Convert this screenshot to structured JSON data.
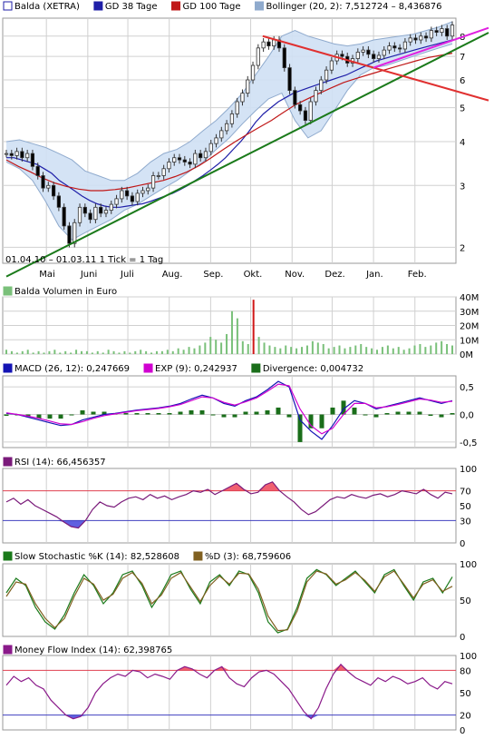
{
  "colors": {
    "frame": "#9a9a9a",
    "grid": "#d0d0d0",
    "candle_up": "#ffffff",
    "candle_down": "#000000",
    "price_line": "#333333",
    "gd38": "#1f1fa8",
    "gd100": "#c01818",
    "boll_fill": "#cfe0f4",
    "boll_line": "#8faacd",
    "trend_up": "#1a7a1a",
    "trend_down": "#e03030",
    "trend_pink": "#e020e0",
    "volume": "#7ac07a",
    "volume_spike": "#d01818",
    "macd": "#1414b4",
    "exp": "#d000d0",
    "divergence": "#1a6e1a",
    "rsi": "#7a1a7a",
    "osc_fill_high": "#f06070",
    "osc_fill_low": "#6060e0",
    "osc_line_high": "#e04050",
    "osc_line_low": "#4040c0",
    "stoch_k": "#1a7a1a",
    "stoch_d": "#806020",
    "mfi": "#8a1a8a"
  },
  "panels": {
    "price": {
      "legend": [
        {
          "label": "Balda (XETRA)",
          "color": "#1f1fa8",
          "swatch": "outline"
        },
        {
          "label": "GD 38 Tage",
          "color": "#1f1fa8",
          "swatch": "fill"
        },
        {
          "label": "GD 100 Tage",
          "color": "#c01818",
          "swatch": "fill"
        },
        {
          "label": "Bollinger (20, 2): 7,512724 – 8,436876",
          "color": "#8faacd",
          "swatch": "fill"
        }
      ],
      "info": "01.04.10 – 01.03.11   1 Tick = 1 Tag"
    },
    "volume": {
      "legend": [
        {
          "label": "Balda Volumen in Euro",
          "color": "#7ac07a",
          "swatch": "fill"
        }
      ]
    },
    "macd": {
      "legend": [
        {
          "label": "MACD (26, 12): 0,247669",
          "color": "#1414b4",
          "swatch": "fill"
        },
        {
          "label": "EXP (9): 0,242937",
          "color": "#d000d0",
          "swatch": "fill"
        },
        {
          "label": "Divergence: 0,004732",
          "color": "#1a6e1a",
          "swatch": "fill"
        }
      ]
    },
    "rsi": {
      "legend": [
        {
          "label": "RSI (14): 66,456357",
          "color": "#7a1a7a",
          "swatch": "fill"
        }
      ]
    },
    "stoch": {
      "legend": [
        {
          "label": "Slow Stochastic %K (14): 82,528608",
          "color": "#1a7a1a",
          "swatch": "fill"
        },
        {
          "label": "%D (3): 68,759606",
          "color": "#806020",
          "swatch": "fill"
        }
      ]
    },
    "mfi": {
      "legend": [
        {
          "label": "Money Flow Index (14): 62,398765",
          "color": "#8a1a8a",
          "swatch": "fill"
        }
      ]
    }
  },
  "chart_data": [
    {
      "type": "line",
      "title": "Balda (XETRA)",
      "subtitle": "01.04.10 – 01.03.11   1 Tick = 1 Tag",
      "x_start": "2010-04-01",
      "x_end": "2011-03-01",
      "x_tick_labels": [
        "Mai",
        "Juni",
        "Juli",
        "Aug.",
        "Sep.",
        "Okt.",
        "Nov.",
        "Dez.",
        "Jan.",
        "Feb."
      ],
      "y_scale": "log",
      "ylim": [
        1.8,
        9
      ],
      "y_ticks": [
        2,
        3,
        4,
        5,
        6,
        7,
        8
      ],
      "y_tick_labels": [
        "2",
        "3",
        "4",
        "5",
        "6",
        "7",
        "8"
      ],
      "grid": true,
      "legend_position": "top",
      "close_prices": [
        3.7,
        3.65,
        3.75,
        3.6,
        3.7,
        3.4,
        3.2,
        2.95,
        3.0,
        2.8,
        2.6,
        2.3,
        2.05,
        2.35,
        2.6,
        2.5,
        2.4,
        2.6,
        2.5,
        2.55,
        2.65,
        2.75,
        2.9,
        2.8,
        2.7,
        2.85,
        2.9,
        2.95,
        3.2,
        3.2,
        3.35,
        3.5,
        3.6,
        3.55,
        3.5,
        3.45,
        3.7,
        3.6,
        3.75,
        3.95,
        4.1,
        4.3,
        4.5,
        4.8,
        5.2,
        5.5,
        6.0,
        6.6,
        7.4,
        7.7,
        7.5,
        7.8,
        7.4,
        6.5,
        5.6,
        5.1,
        4.9,
        4.6,
        5.2,
        5.6,
        6.0,
        6.4,
        6.8,
        7.1,
        7.0,
        6.7,
        6.9,
        7.2,
        7.3,
        7.1,
        6.9,
        7.05,
        7.3,
        7.5,
        7.4,
        7.35,
        7.7,
        7.9,
        7.8,
        8.0,
        7.9,
        8.3,
        8.2,
        8.4,
        8.0,
        8.6
      ],
      "series": [
        {
          "name": "GD 38 Tage",
          "values": [
            3.6,
            3.6,
            3.55,
            3.5,
            3.45,
            3.35,
            3.25,
            3.1,
            3.0,
            2.9,
            2.8,
            2.72,
            2.66,
            2.62,
            2.6,
            2.6,
            2.62,
            2.64,
            2.66,
            2.7,
            2.75,
            2.8,
            2.85,
            2.92,
            3.0,
            3.1,
            3.2,
            3.32,
            3.45,
            3.6,
            3.8,
            4.0,
            4.25,
            4.55,
            4.8,
            5.0,
            5.2,
            5.35,
            5.5,
            5.6,
            5.7,
            5.8,
            5.9,
            6.0,
            6.1,
            6.2,
            6.35,
            6.5,
            6.65,
            6.8,
            6.9,
            7.0,
            7.1,
            7.2,
            7.3,
            7.4,
            7.5,
            7.6,
            7.7,
            7.8
          ]
        },
        {
          "name": "GD 100 Tage",
          "values": [
            3.55,
            3.4,
            3.28,
            3.15,
            3.05,
            2.98,
            2.93,
            2.9,
            2.9,
            2.92,
            2.95,
            3.0,
            3.05,
            3.1,
            3.18,
            3.28,
            3.42,
            3.6,
            3.8,
            4.0,
            4.2,
            4.4,
            4.6,
            4.85,
            5.1,
            5.3,
            5.5,
            5.7,
            5.9,
            6.05,
            6.2,
            6.35,
            6.5,
            6.65,
            6.8,
            6.95,
            7.05,
            7.15
          ]
        },
        {
          "name": "Bollinger (20, 2)",
          "upper": [
            4.0,
            4.05,
            3.95,
            3.85,
            3.7,
            3.55,
            3.3,
            3.2,
            3.1,
            3.1,
            3.25,
            3.5,
            3.7,
            3.8,
            4.0,
            4.3,
            4.6,
            5.0,
            5.5,
            6.2,
            7.0,
            8.0,
            8.3,
            8.0,
            7.8,
            7.6,
            7.5,
            7.6,
            7.8,
            7.9,
            8.0,
            8.1,
            8.3,
            8.5,
            8.8
          ],
          "lower": [
            3.5,
            3.35,
            3.1,
            2.7,
            2.3,
            2.1,
            2.2,
            2.3,
            2.4,
            2.55,
            2.65,
            2.8,
            2.95,
            3.1,
            3.3,
            3.5,
            3.8,
            4.1,
            4.5,
            4.9,
            5.3,
            5.5,
            4.6,
            4.1,
            4.3,
            4.9,
            5.6,
            6.2,
            6.5,
            6.6,
            6.8,
            7.0,
            7.2,
            7.4,
            7.6
          ]
        }
      ],
      "annotations": [
        {
          "name": "trend_up",
          "from": {
            "x": "2010-04-01",
            "y": 1.65
          },
          "to": {
            "x": "2011-03-01",
            "y": 7.8
          }
        },
        {
          "name": "trend_down",
          "from": {
            "x": "2010-10-10",
            "y": 8.0
          },
          "to": {
            "x": "2011-03-01",
            "y": 5.7
          }
        },
        {
          "name": "trend_pink",
          "from": {
            "x": "2011-01-01",
            "y": 6.5
          },
          "to": {
            "x": "2011-03-01",
            "y": 8.05
          }
        }
      ]
    },
    {
      "type": "bar",
      "title": "Balda Volumen in Euro",
      "ylim": [
        0,
        40
      ],
      "y_unit": "M",
      "y_tick_labels": [
        "0M",
        "10M",
        "20M",
        "30M",
        "40M"
      ],
      "values_desc": "daily volume in millions of euro",
      "values": [
        3,
        2,
        1,
        2,
        3,
        1,
        2,
        1,
        2,
        3,
        1,
        2,
        1,
        3,
        2,
        2,
        1,
        2,
        1,
        3,
        2,
        1,
        2,
        1,
        2,
        3,
        2,
        1,
        2,
        2,
        3,
        2,
        4,
        3,
        5,
        4,
        6,
        8,
        12,
        10,
        8,
        14,
        30,
        25,
        9,
        7,
        38,
        12,
        8,
        6,
        5,
        4,
        6,
        5,
        4,
        5,
        6,
        9,
        8,
        7,
        4,
        5,
        6,
        4,
        5,
        6,
        7,
        5,
        4,
        3,
        5,
        6,
        4,
        5,
        3,
        4,
        6,
        7,
        5,
        6,
        8,
        9,
        7,
        6
      ]
    },
    {
      "type": "line",
      "title": "MACD (26, 12)",
      "ylim": [
        -0.6,
        0.7
      ],
      "y_ticks": [
        -0.5,
        0,
        0.5
      ],
      "y_tick_labels": [
        "-0,5",
        "0,0",
        "0,5"
      ],
      "series": [
        {
          "name": "MACD (26, 12)",
          "values": [
            0.02,
            0.0,
            -0.05,
            -0.1,
            -0.15,
            -0.2,
            -0.18,
            -0.1,
            -0.05,
            0.0,
            0.02,
            0.05,
            0.08,
            0.1,
            0.12,
            0.15,
            0.2,
            0.28,
            0.35,
            0.3,
            0.2,
            0.15,
            0.25,
            0.32,
            0.45,
            0.6,
            0.5,
            -0.1,
            -0.3,
            -0.45,
            -0.2,
            0.1,
            0.25,
            0.2,
            0.1,
            0.15,
            0.2,
            0.25,
            0.3,
            0.25,
            0.2,
            0.25
          ]
        },
        {
          "name": "EXP (9)",
          "values": [
            0.03,
            0.0,
            -0.03,
            -0.07,
            -0.12,
            -0.17,
            -0.18,
            -0.13,
            -0.07,
            -0.02,
            0.01,
            0.04,
            0.07,
            0.09,
            0.11,
            0.14,
            0.18,
            0.25,
            0.32,
            0.3,
            0.22,
            0.17,
            0.23,
            0.3,
            0.42,
            0.55,
            0.52,
            0.1,
            -0.2,
            -0.35,
            -0.25,
            0.0,
            0.2,
            0.2,
            0.12,
            0.14,
            0.18,
            0.23,
            0.28,
            0.26,
            0.22,
            0.24
          ]
        },
        {
          "name": "Divergence",
          "values": [
            -0.01,
            0.0,
            -0.02,
            -0.03,
            -0.03,
            -0.03,
            0.0,
            0.03,
            0.02,
            0.02,
            0.01,
            0.01,
            0.01,
            0.01,
            0.01,
            0.01,
            0.02,
            0.03,
            0.03,
            0.0,
            -0.02,
            -0.02,
            0.02,
            0.02,
            0.03,
            0.05,
            -0.02,
            -0.2,
            -0.1,
            -0.1,
            0.05,
            0.1,
            0.05,
            0.0,
            -0.02,
            0.01,
            0.02,
            0.02,
            0.02,
            -0.01,
            -0.02,
            0.01
          ]
        }
      ]
    },
    {
      "type": "line",
      "title": "RSI (14)",
      "ylim": [
        0,
        100
      ],
      "y_ticks": [
        0,
        30,
        50,
        70,
        100
      ],
      "y_tick_labels": [
        "0",
        "30",
        "50",
        "70",
        "100"
      ],
      "thresholds": [
        70,
        30
      ],
      "series": [
        {
          "name": "RSI (14)",
          "values": [
            55,
            60,
            52,
            58,
            50,
            45,
            40,
            35,
            28,
            22,
            20,
            30,
            45,
            55,
            50,
            48,
            55,
            60,
            62,
            58,
            65,
            60,
            63,
            58,
            62,
            65,
            70,
            68,
            72,
            65,
            70,
            75,
            80,
            72,
            66,
            68,
            78,
            82,
            70,
            62,
            55,
            45,
            38,
            42,
            50,
            58,
            62,
            60,
            65,
            62,
            60,
            64,
            66,
            62,
            65,
            70,
            68,
            66,
            72,
            65,
            60,
            68,
            66
          ]
        }
      ]
    },
    {
      "type": "line",
      "title": "Slow Stochastic %K (14)",
      "ylim": [
        0,
        100
      ],
      "y_ticks": [
        0,
        50,
        100
      ],
      "y_tick_labels": [
        "0",
        "50",
        "100"
      ],
      "series": [
        {
          "name": "Slow Stochastic %K (14)",
          "values": [
            60,
            80,
            70,
            40,
            20,
            10,
            30,
            60,
            85,
            70,
            45,
            60,
            85,
            90,
            70,
            40,
            60,
            85,
            90,
            65,
            45,
            75,
            85,
            70,
            90,
            85,
            60,
            20,
            5,
            10,
            40,
            80,
            92,
            85,
            70,
            80,
            90,
            75,
            60,
            85,
            92,
            70,
            50,
            75,
            80,
            60,
            82
          ]
        },
        {
          "name": "%D (3)",
          "values": [
            55,
            75,
            72,
            45,
            25,
            12,
            25,
            55,
            80,
            72,
            50,
            58,
            80,
            88,
            73,
            45,
            57,
            80,
            88,
            68,
            48,
            70,
            83,
            72,
            87,
            86,
            65,
            28,
            8,
            9,
            35,
            75,
            90,
            86,
            72,
            78,
            88,
            77,
            62,
            82,
            90,
            72,
            53,
            72,
            78,
            62,
            69
          ]
        }
      ]
    },
    {
      "type": "line",
      "title": "Money Flow Index (14)",
      "ylim": [
        0,
        100
      ],
      "y_ticks": [
        0,
        20,
        50,
        80,
        100
      ],
      "y_tick_labels": [
        "0",
        "20",
        "50",
        "80",
        "100"
      ],
      "thresholds": [
        80,
        20
      ],
      "series": [
        {
          "name": "Money Flow Index (14)",
          "values": [
            60,
            72,
            65,
            70,
            60,
            55,
            40,
            30,
            20,
            15,
            18,
            30,
            50,
            62,
            70,
            75,
            72,
            80,
            78,
            70,
            75,
            72,
            68,
            80,
            85,
            82,
            75,
            70,
            80,
            85,
            70,
            62,
            58,
            70,
            78,
            80,
            75,
            65,
            55,
            40,
            25,
            15,
            30,
            55,
            75,
            88,
            78,
            70,
            65,
            60,
            70,
            65,
            72,
            68,
            62,
            65,
            70,
            60,
            55,
            65,
            62
          ]
        }
      ]
    }
  ]
}
